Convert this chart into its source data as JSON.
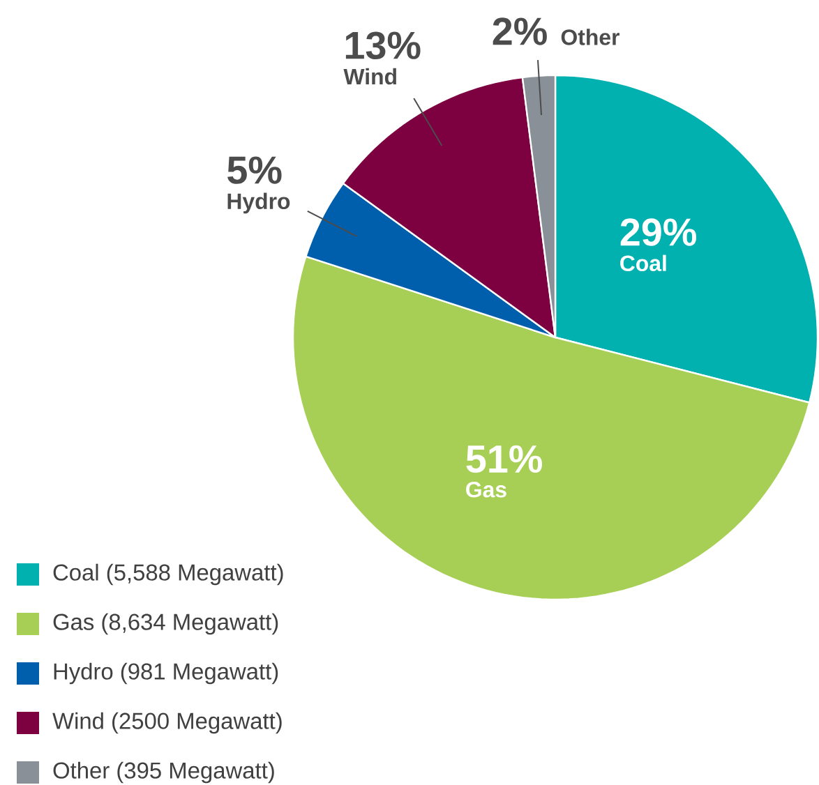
{
  "chart_data": {
    "type": "pie",
    "categories": [
      "Coal (5,588 Megawatt)",
      "Gas (8,634 Megawatt)",
      "Hydro (981 Megawatt)",
      "Wind (2500 Megawatt)",
      "Other (395 Megawatt)"
    ],
    "values": [
      29,
      51,
      5,
      13,
      2
    ],
    "colors": [
      "#00b1b0",
      "#a7cf55",
      "#005fad",
      "#7d0040",
      "#8a9098"
    ],
    "value_labels": [
      "29%",
      "51%",
      "5%",
      "13%",
      "2%"
    ],
    "annotations": [
      {
        "text": "Coal",
        "x": "Coal (5,588 Megawatt)"
      },
      {
        "text": "Gas",
        "x": "Gas (8,634 Megawatt)"
      },
      {
        "text": "Hydro",
        "x": "Hydro (981 Megawatt)"
      },
      {
        "text": "Wind",
        "x": "Wind (2500 Megawatt)"
      },
      {
        "text": "Other",
        "x": "Other (395 Megawatt)"
      }
    ],
    "legend": "bottom left"
  }
}
